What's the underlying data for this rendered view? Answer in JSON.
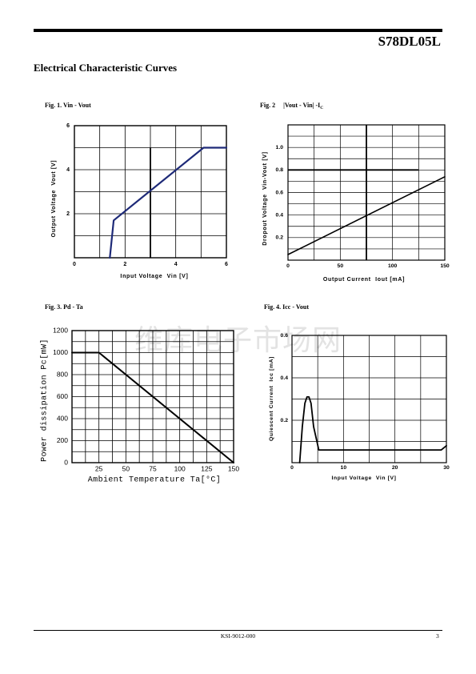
{
  "header": {
    "part_number": "S78DL05L"
  },
  "section_title": "Electrical Characteristic Curves",
  "watermark": "维库电子市场网",
  "footer": {
    "doc_code": "KSI-9012-000",
    "page_number": "3"
  },
  "colors": {
    "ink": "#000000",
    "watermark": "#e3e3e3"
  },
  "chart_data": [
    {
      "type": "line",
      "caption": "Fig. 1. Vin - Vout",
      "xlabel": "Input Voltage  Vin [V]",
      "ylabel": "Output Voltage  Vout [V]",
      "xlim": [
        0,
        6
      ],
      "ylim": [
        0,
        6
      ],
      "xticks": [
        0,
        2,
        4,
        6
      ],
      "xticklabels": [
        "0",
        "2",
        "4",
        "6"
      ],
      "yticks": [
        2,
        4,
        6
      ],
      "yticklabels": [
        "2",
        "4",
        "6"
      ],
      "grid": true,
      "line_color": "#1e2a78",
      "x": [
        1.4,
        1.55,
        5.1,
        6
      ],
      "y": [
        0,
        1.7,
        5.0,
        5.0
      ]
    },
    {
      "type": "line",
      "caption": "Fig. 2",
      "caption_formula": "|Vout - Vin| -I",
      "caption_subscript": "C",
      "xlabel": "Output Current  Iout [mA]",
      "ylabel": "Dropout Voltage  Vin-Vout [V]",
      "xlim": [
        0,
        150
      ],
      "ylim": [
        0,
        1.2
      ],
      "xticks": [
        0,
        50,
        100,
        150
      ],
      "xticklabels": [
        "0",
        "50",
        "100",
        "150"
      ],
      "yticks": [
        0.2,
        0.4,
        0.6,
        0.8,
        1.0
      ],
      "yticklabels": [
        "0.2",
        "0.4",
        "0.6",
        "0.8",
        "1.0"
      ],
      "grid": true,
      "line_color": "#000000",
      "x": [
        0,
        150
      ],
      "y": [
        0.05,
        0.74
      ]
    },
    {
      "type": "line",
      "caption": "Fig. 3. Pd - Ta",
      "xlabel": "Ambient Temperature Ta[°C]",
      "ylabel": "Power dissipation Pc[mW]",
      "xlim": [
        0,
        150
      ],
      "ylim": [
        0,
        1200
      ],
      "xticks": [
        25,
        50,
        75,
        100,
        125,
        150
      ],
      "xticklabels": [
        "25",
        "50",
        "75",
        "100",
        "125",
        "150"
      ],
      "yticks": [
        0,
        200,
        400,
        600,
        800,
        1000,
        1200
      ],
      "yticklabels": [
        "0",
        "200",
        "400",
        "600",
        "800",
        "1000",
        "1200"
      ],
      "grid": true,
      "line_color": "#000000",
      "x": [
        0,
        25,
        150
      ],
      "y": [
        1000,
        1000,
        0
      ]
    },
    {
      "type": "line",
      "caption": "Fig. 4. Icc - Vout",
      "xlabel": "Input Voltage  Vin [V]",
      "ylabel": "Quiescent Current  Icc [mA]",
      "xlim": [
        0,
        30
      ],
      "ylim": [
        0,
        0.6
      ],
      "xticks": [
        0,
        10,
        20,
        30
      ],
      "xticklabels": [
        "0",
        "10",
        "20",
        "30"
      ],
      "yticks": [
        0.2,
        0.4,
        0.6
      ],
      "yticklabels": [
        "0.2",
        "0.4",
        "0.6"
      ],
      "grid": true,
      "line_color": "#000000",
      "x": [
        1.5,
        2.0,
        2.5,
        2.9,
        3.3,
        3.7,
        4.2,
        5.2,
        29,
        30
      ],
      "y": [
        0,
        0.17,
        0.28,
        0.31,
        0.31,
        0.28,
        0.17,
        0.06,
        0.06,
        0.08
      ]
    }
  ]
}
